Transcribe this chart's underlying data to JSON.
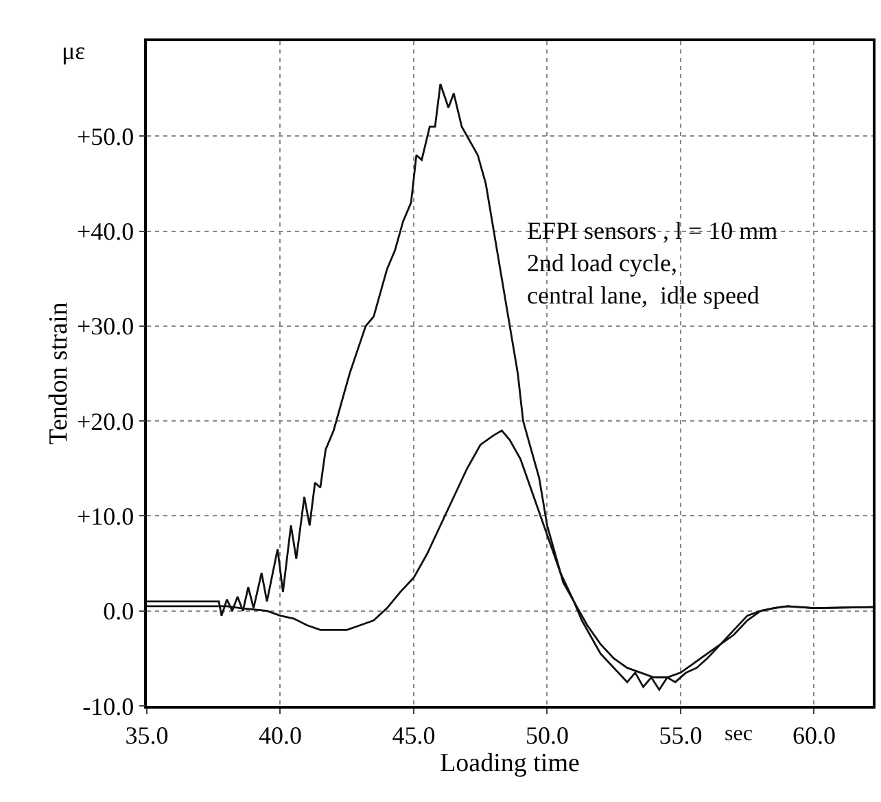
{
  "chart_data": {
    "type": "line",
    "xlabel": "Loading time",
    "ylabel": "Tendon strain",
    "annotations": [
      "με",
      "sec",
      "EFPI sensors , l = 10 mm\n2nd load cycle,\ncentral lane,  idle speed"
    ],
    "xlim": [
      35,
      62.2
    ],
    "ylim": [
      -10,
      60
    ],
    "xticks": [
      {
        "value": 35,
        "label": "35.0"
      },
      {
        "value": 40,
        "label": "40.0"
      },
      {
        "value": 45,
        "label": "45.0"
      },
      {
        "value": 50,
        "label": "50.0"
      },
      {
        "value": 55,
        "label": "55.0"
      },
      {
        "value": 60,
        "label": "60.0"
      }
    ],
    "yticks": [
      {
        "value": -10,
        "label": "-10.0"
      },
      {
        "value": 0,
        "label": "0.0"
      },
      {
        "value": 10,
        "label": "+10.0"
      },
      {
        "value": 20,
        "label": "+20.0"
      },
      {
        "value": 30,
        "label": "+30.0"
      },
      {
        "value": 40,
        "label": "+40.0"
      },
      {
        "value": 50,
        "label": "+50.0"
      }
    ],
    "grid": true,
    "marker": "none",
    "line_style": "solid",
    "series": [
      {
        "color": "#111111",
        "x": [
          35,
          37.7,
          37.8,
          38.0,
          38.2,
          38.4,
          38.6,
          38.8,
          39.0,
          39.3,
          39.5,
          39.9,
          40.1,
          40.4,
          40.6,
          40.9,
          41.1,
          41.3,
          41.5,
          41.7,
          42.0,
          42.3,
          42.6,
          42.9,
          43.2,
          43.5,
          43.7,
          44.0,
          44.3,
          44.6,
          44.9,
          45.1,
          45.3,
          45.6,
          45.8,
          46.0,
          46.3,
          46.5,
          46.8,
          47.0,
          47.2,
          47.4,
          47.7,
          48.0,
          48.3,
          48.6,
          48.9,
          49.1,
          49.4,
          49.7,
          50.0,
          50.3,
          50.6,
          51.0,
          51.3,
          51.7,
          52.0,
          52.5,
          53.0,
          53.3,
          53.6,
          53.9,
          54.2,
          54.5,
          54.8,
          55.2,
          55.6,
          56.0,
          56.5,
          57.0,
          57.5,
          58.0,
          58.5,
          59.0,
          60.0,
          62.2
        ],
        "values": [
          1.0,
          1.0,
          -0.5,
          1.2,
          0,
          1.5,
          0,
          2.5,
          0.3,
          4.0,
          1.0,
          6.5,
          2.0,
          9.0,
          5.5,
          12.0,
          9.0,
          13.5,
          13.0,
          17.0,
          19.0,
          22.0,
          25.0,
          27.5,
          30.0,
          31.0,
          33.0,
          36.0,
          38.0,
          41.0,
          43.0,
          48.0,
          47.5,
          51.0,
          51.0,
          55.5,
          53.0,
          54.5,
          51.0,
          50.0,
          49.0,
          48.0,
          45.0,
          40.0,
          35.0,
          30.0,
          25.0,
          20.0,
          17.0,
          14.0,
          9.0,
          6.0,
          3.0,
          1.0,
          -1.0,
          -3.0,
          -4.5,
          -6.0,
          -7.5,
          -6.5,
          -8.0,
          -7.0,
          -8.3,
          -7.0,
          -7.5,
          -6.5,
          -6.0,
          -5.0,
          -3.5,
          -2.0,
          -0.5,
          0,
          0.3,
          0.5,
          0.3,
          0.4
        ]
      },
      {
        "color": "#111111",
        "x": [
          35,
          38.0,
          38.5,
          39.5,
          40.0,
          40.5,
          41.0,
          41.5,
          42.0,
          42.5,
          43.0,
          43.5,
          44.0,
          44.5,
          45.0,
          45.5,
          46.0,
          46.5,
          47.0,
          47.5,
          48.0,
          48.3,
          48.6,
          49.0,
          49.5,
          50.0,
          50.5,
          51.0,
          51.5,
          52.0,
          52.5,
          53.0,
          53.5,
          54.0,
          54.5,
          55.0,
          55.5,
          56.0,
          56.5,
          57.0,
          57.5,
          58.0,
          58.5,
          59.0,
          60.0,
          62.2
        ],
        "values": [
          0.5,
          0.5,
          0.3,
          0,
          -0.5,
          -0.8,
          -1.5,
          -2.0,
          -2.0,
          -2.0,
          -1.5,
          -1.0,
          0.3,
          2.0,
          3.5,
          6.0,
          9.0,
          12.0,
          15.0,
          17.5,
          18.5,
          19.0,
          18.0,
          16.0,
          12.0,
          8.0,
          4.0,
          1.0,
          -1.5,
          -3.5,
          -5.0,
          -6.0,
          -6.5,
          -7.0,
          -7.0,
          -6.5,
          -5.5,
          -4.5,
          -3.5,
          -2.5,
          -1.0,
          0,
          0.3,
          0.5,
          0.3,
          0.4
        ]
      }
    ]
  }
}
